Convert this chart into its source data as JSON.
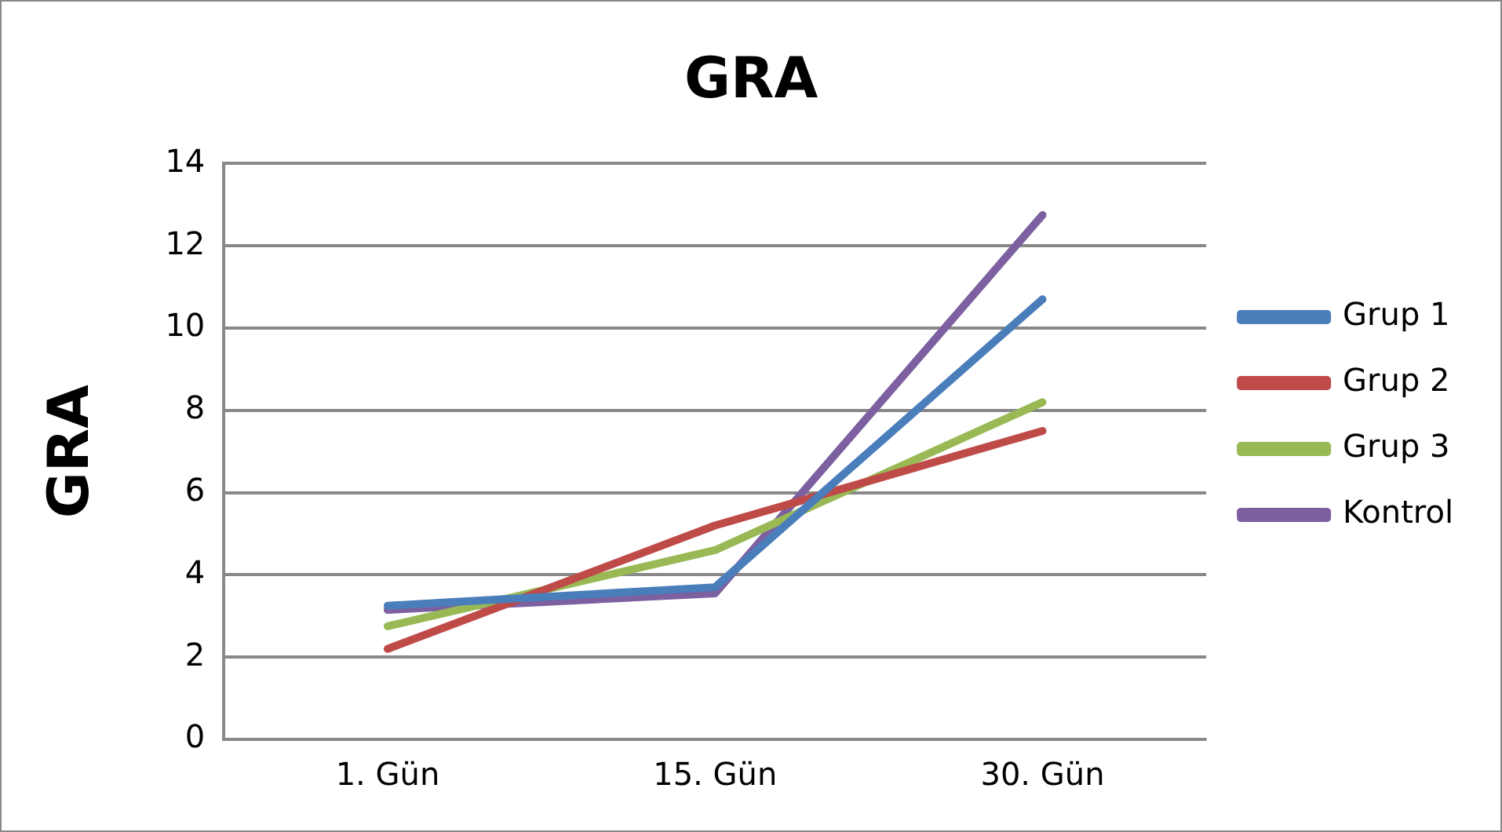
{
  "chart_data": {
    "type": "line",
    "title": "GRA",
    "ylabel": "GRA",
    "categories": [
      "1. Gün",
      "15. Gün",
      "30. Gün"
    ],
    "series": [
      {
        "name": "Grup 1",
        "color": "#4a7ebb",
        "values": [
          3.25,
          3.7,
          10.7
        ]
      },
      {
        "name": "Grup 2",
        "color": "#be4b48",
        "values": [
          2.2,
          5.2,
          7.5
        ]
      },
      {
        "name": "Grup 3",
        "color": "#98b954",
        "values": [
          2.75,
          4.6,
          8.2
        ]
      },
      {
        "name": "Kontrol",
        "color": "#7d60a0",
        "values": [
          3.15,
          3.55,
          12.75
        ]
      }
    ],
    "ylim": [
      0,
      14
    ],
    "yticks": [
      0,
      2,
      4,
      6,
      8,
      10,
      12,
      14
    ],
    "grid": "y",
    "legend": "right",
    "marker": "none",
    "line_style": "solid"
  }
}
